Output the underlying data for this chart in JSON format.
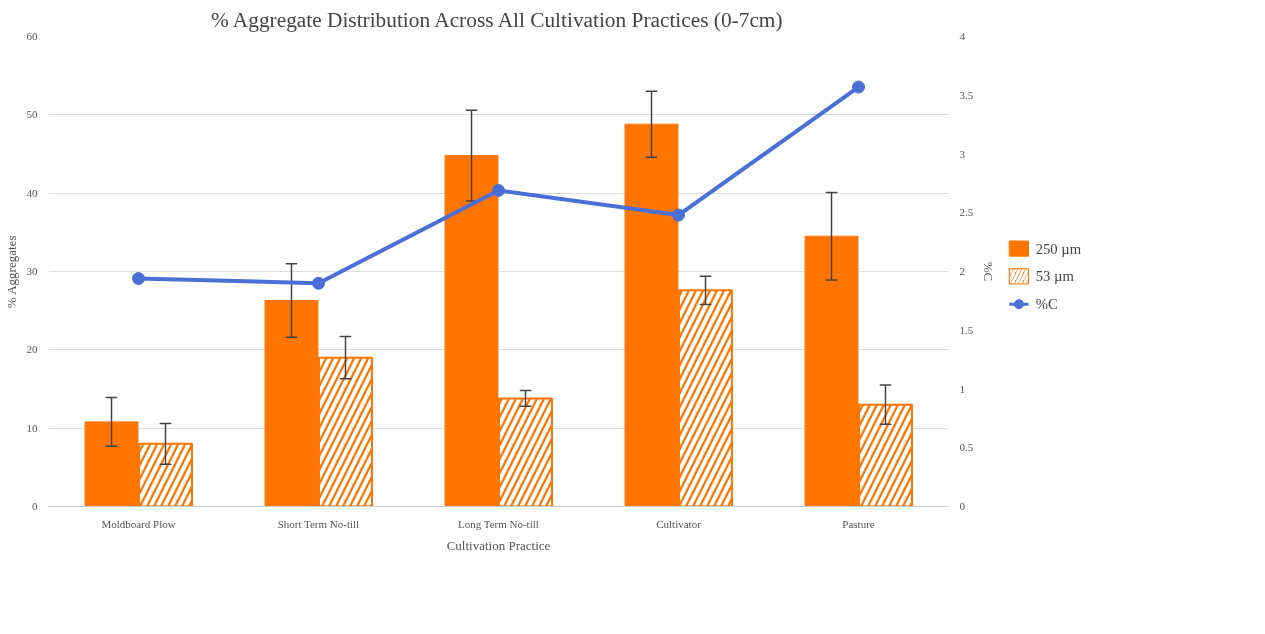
{
  "chart_data": {
    "type": "bar",
    "title": "% Aggregate Distribution Across All Cultivation Practices (0-7cm)",
    "xlabel": "Cultivation Practice",
    "ylabel": "% Aggregates",
    "y2label": "%C",
    "categories": [
      "Moldboard Plow",
      "Short Term No-till",
      "Long Term No-till",
      "Cultivator",
      "Pasture"
    ],
    "series": [
      {
        "name": "250 µm",
        "color": "#ff7500",
        "values": [
          10.8,
          26.3,
          44.8,
          48.8,
          34.5
        ],
        "errors": [
          3.1,
          4.7,
          5.8,
          4.2,
          5.6
        ]
      },
      {
        "name": "53 µm",
        "color": "#ff7500",
        "values": [
          8.0,
          19.0,
          13.8,
          27.6,
          13.0
        ],
        "errors": [
          2.6,
          2.7,
          1.0,
          1.8,
          2.5
        ]
      },
      {
        "name": "%C",
        "type": "line",
        "axis": "y2",
        "color": "#4a6fd6",
        "marker": "circle",
        "values": [
          1.94,
          1.9,
          2.69,
          2.48,
          3.57
        ]
      }
    ],
    "ylim": [
      0,
      60
    ],
    "yticks": [
      0,
      10,
      20,
      30,
      40,
      50,
      60
    ],
    "y2lim": [
      0,
      4
    ],
    "y2ticks": [
      0,
      0.5,
      1,
      1.5,
      2,
      2.5,
      3,
      3.5,
      4
    ],
    "grid": "y",
    "legend": "right"
  }
}
